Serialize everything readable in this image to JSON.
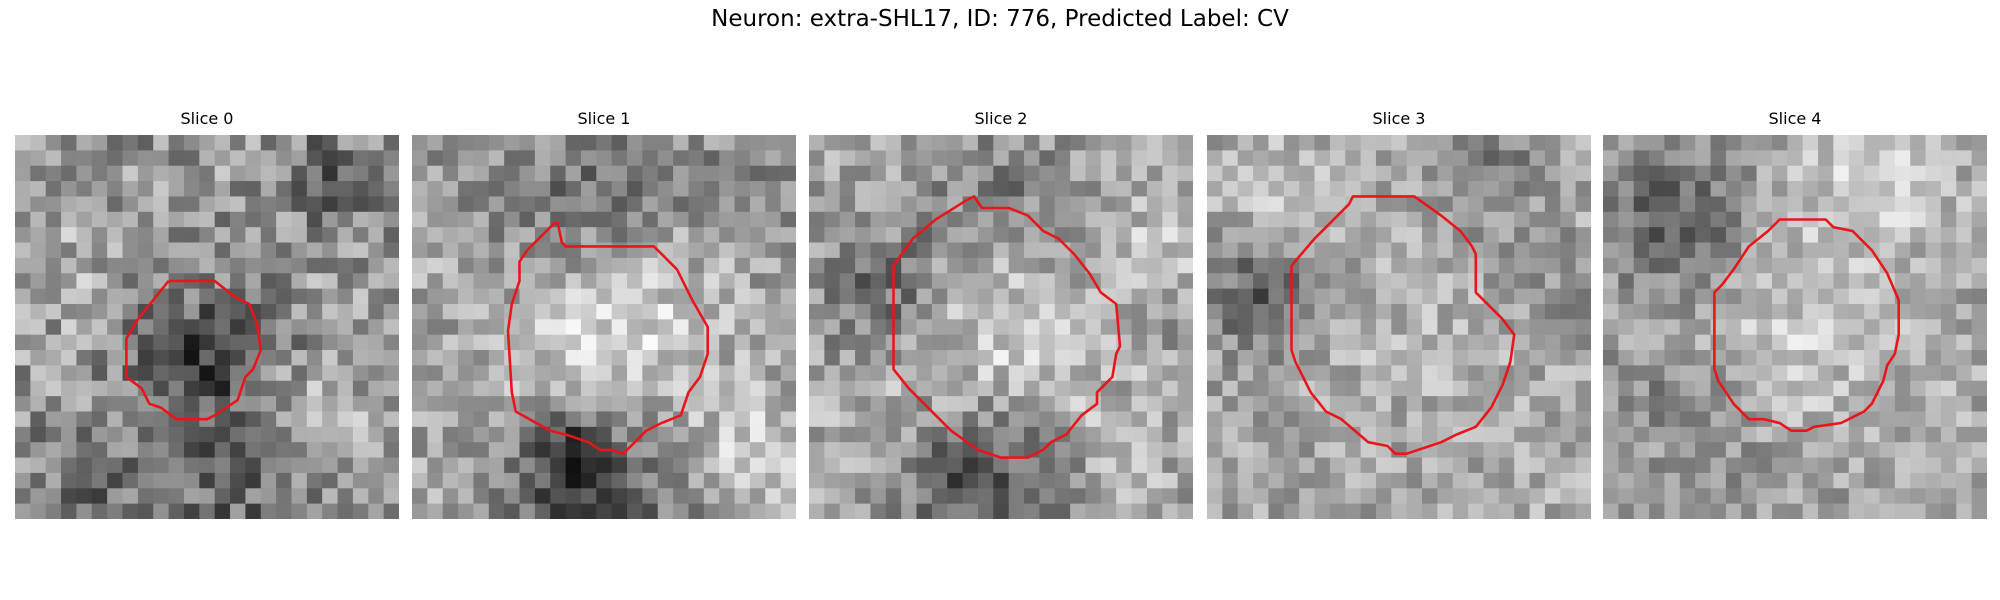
{
  "figure": {
    "title": "Neuron: extra-SHL17, ID: 776, Predicted Label: CV"
  },
  "colors": {
    "contour": "#e8161b",
    "background": "#ffffff"
  },
  "slices": [
    {
      "title": "Slice 0",
      "contour_icon": "red-outline"
    },
    {
      "title": "Slice 1",
      "contour_icon": "red-outline"
    },
    {
      "title": "Slice 2",
      "contour_icon": "red-outline"
    },
    {
      "title": "Slice 3",
      "contour_icon": "red-outline"
    },
    {
      "title": "Slice 4",
      "contour_icon": "red-outline"
    }
  ]
}
